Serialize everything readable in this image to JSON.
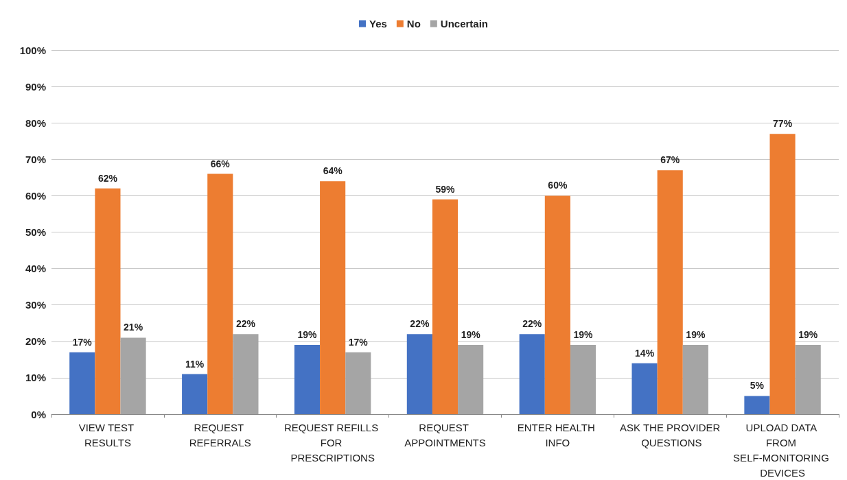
{
  "chart_data": {
    "type": "bar",
    "categories": [
      "VIEW TEST RESULTS",
      "REQUEST REFERRALS",
      "REQUEST REFILLS FOR PRESCRIPTIONS",
      "REQUEST APPOINTMENTS",
      "ENTER HEALTH INFO",
      "ASK THE PROVIDER QUESTIONS",
      "UPLOAD DATA FROM SELF-MONITORING DEVICES"
    ],
    "series": [
      {
        "name": "Yes",
        "color": "#4472c4",
        "values": [
          17,
          11,
          19,
          22,
          22,
          14,
          5
        ],
        "value_labels": [
          "17%",
          "11%",
          "19%",
          "22%",
          "22%",
          "14%",
          "5%"
        ]
      },
      {
        "name": "No",
        "color": "#ed7d31",
        "values": [
          62,
          66,
          64,
          59,
          60,
          67,
          77
        ],
        "value_labels": [
          "62%",
          "66%",
          "64%",
          "59%",
          "60%",
          "67%",
          "77%"
        ]
      },
      {
        "name": "Uncertain",
        "color": "#a5a5a5",
        "values": [
          21,
          22,
          17,
          19,
          19,
          19,
          19
        ],
        "value_labels": [
          "21%",
          "22%",
          "17%",
          "19%",
          "19%",
          "19%",
          "19%"
        ]
      }
    ],
    "ylim": [
      0,
      100
    ],
    "yticks": [
      {
        "value": 0,
        "label": "0%"
      },
      {
        "value": 10,
        "label": "10%"
      },
      {
        "value": 20,
        "label": "20%"
      },
      {
        "value": 30,
        "label": "30%"
      },
      {
        "value": 40,
        "label": "40%"
      },
      {
        "value": 50,
        "label": "50%"
      },
      {
        "value": 60,
        "label": "60%"
      },
      {
        "value": 70,
        "label": "70%"
      },
      {
        "value": 80,
        "label": "80%"
      },
      {
        "value": 90,
        "label": "90%"
      },
      {
        "value": 100,
        "label": "100%"
      }
    ],
    "grid": "y",
    "legend": "top"
  }
}
